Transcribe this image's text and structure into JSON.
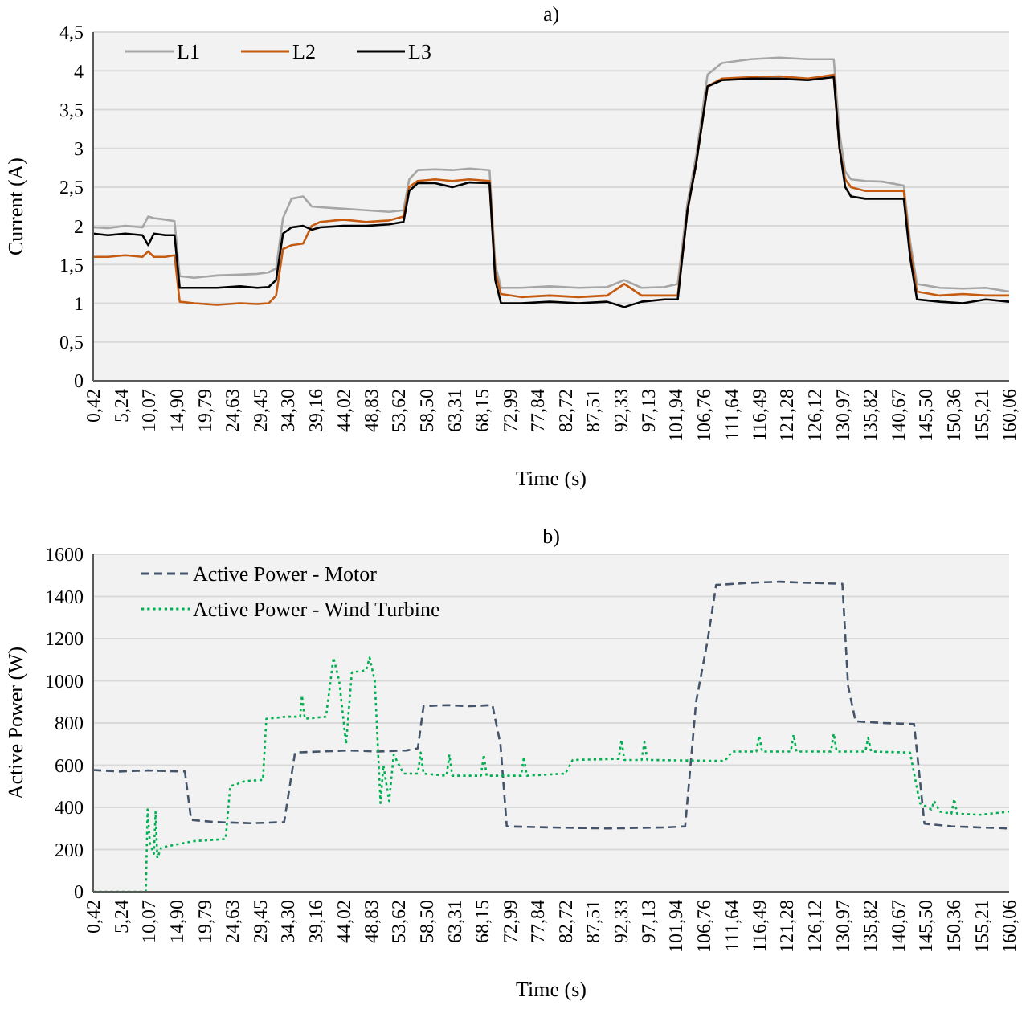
{
  "chart_data": [
    {
      "type": "line",
      "title": "a)",
      "xlabel": "Time (s)",
      "ylabel": "Current (A)",
      "xlim": [
        0.42,
        160.06
      ],
      "xticks": [
        {
          "value": 0.42,
          "label": "0,42"
        },
        {
          "value": 5.24,
          "label": "5,24"
        },
        {
          "value": 10.07,
          "label": "10,07"
        },
        {
          "value": 14.9,
          "label": "14,90"
        },
        {
          "value": 19.79,
          "label": "19,79"
        },
        {
          "value": 24.63,
          "label": "24,63"
        },
        {
          "value": 29.45,
          "label": "29,45"
        },
        {
          "value": 34.3,
          "label": "34,30"
        },
        {
          "value": 39.16,
          "label": "39,16"
        },
        {
          "value": 44.02,
          "label": "44,02"
        },
        {
          "value": 48.83,
          "label": "48,83"
        },
        {
          "value": 53.62,
          "label": "53,62"
        },
        {
          "value": 58.5,
          "label": "58,50"
        },
        {
          "value": 63.31,
          "label": "63,31"
        },
        {
          "value": 68.15,
          "label": "68,15"
        },
        {
          "value": 72.99,
          "label": "72,99"
        },
        {
          "value": 77.84,
          "label": "77,84"
        },
        {
          "value": 82.72,
          "label": "82,72"
        },
        {
          "value": 87.51,
          "label": "87,51"
        },
        {
          "value": 92.33,
          "label": "92,33"
        },
        {
          "value": 97.13,
          "label": "97,13"
        },
        {
          "value": 101.94,
          "label": "101,94"
        },
        {
          "value": 106.76,
          "label": "106,76"
        },
        {
          "value": 111.64,
          "label": "111,64"
        },
        {
          "value": 116.49,
          "label": "116,49"
        },
        {
          "value": 121.28,
          "label": "121,28"
        },
        {
          "value": 126.12,
          "label": "126,12"
        },
        {
          "value": 130.97,
          "label": "130,97"
        },
        {
          "value": 135.82,
          "label": "135,82"
        },
        {
          "value": 140.67,
          "label": "140,67"
        },
        {
          "value": 145.5,
          "label": "145,50"
        },
        {
          "value": 150.36,
          "label": "150,36"
        },
        {
          "value": 155.21,
          "label": "155,21"
        },
        {
          "value": 160.06,
          "label": "160,06"
        }
      ],
      "ylim": [
        0,
        4.5
      ],
      "yticks": [
        0,
        {
          "value": 0.5,
          "label": "0,5"
        },
        1,
        {
          "value": 1.5,
          "label": "1,5"
        },
        2,
        {
          "value": 2.5,
          "label": "2,5"
        },
        3,
        {
          "value": 3.5,
          "label": "3,5"
        },
        4,
        {
          "value": 4.5,
          "label": "4,5"
        }
      ],
      "grid": "y",
      "legend": "top left",
      "x": [
        0.42,
        3,
        6,
        9,
        10,
        11,
        13,
        14.6,
        15.5,
        18,
        22,
        26,
        29,
        31,
        32.3,
        33.5,
        35,
        37,
        38.5,
        40,
        44,
        48,
        52,
        54.5,
        55.5,
        57,
        60,
        63,
        66,
        69.5,
        70.5,
        71.5,
        75,
        80,
        85,
        90,
        93,
        96,
        100,
        102.3,
        104,
        105.5,
        107.5,
        110,
        115,
        120,
        125,
        129.5,
        130.5,
        131.5,
        132.5,
        135,
        138,
        141.7,
        142.8,
        144,
        148,
        152,
        156,
        160.06
      ],
      "series": [
        {
          "name": "L1",
          "color": "#a6a6a6",
          "line_style": "solid",
          "values": [
            1.98,
            1.97,
            2.0,
            1.98,
            2.12,
            2.1,
            2.08,
            2.06,
            1.35,
            1.33,
            1.36,
            1.37,
            1.38,
            1.4,
            1.45,
            2.1,
            2.35,
            2.38,
            2.25,
            2.24,
            2.22,
            2.2,
            2.18,
            2.2,
            2.6,
            2.72,
            2.73,
            2.72,
            2.74,
            2.72,
            1.5,
            1.2,
            1.2,
            1.22,
            1.2,
            1.21,
            1.3,
            1.2,
            1.21,
            1.25,
            2.3,
            2.9,
            3.95,
            4.1,
            4.15,
            4.17,
            4.15,
            4.15,
            3.2,
            2.7,
            2.6,
            2.58,
            2.57,
            2.52,
            1.8,
            1.25,
            1.2,
            1.19,
            1.2,
            1.15
          ]
        },
        {
          "name": "L2",
          "color": "#c55a11",
          "line_style": "solid",
          "values": [
            1.6,
            1.6,
            1.62,
            1.6,
            1.67,
            1.6,
            1.6,
            1.62,
            1.02,
            1.0,
            0.98,
            1.0,
            0.99,
            1.0,
            1.1,
            1.7,
            1.75,
            1.77,
            2.0,
            2.05,
            2.08,
            2.05,
            2.07,
            2.12,
            2.5,
            2.58,
            2.6,
            2.58,
            2.6,
            2.58,
            1.4,
            1.12,
            1.08,
            1.1,
            1.08,
            1.1,
            1.25,
            1.1,
            1.1,
            1.1,
            2.2,
            2.8,
            3.8,
            3.9,
            3.92,
            3.93,
            3.9,
            3.95,
            3.0,
            2.6,
            2.5,
            2.45,
            2.45,
            2.45,
            1.7,
            1.15,
            1.1,
            1.12,
            1.1,
            1.1
          ]
        },
        {
          "name": "L3",
          "color": "#000000",
          "line_style": "solid",
          "values": [
            1.9,
            1.88,
            1.9,
            1.88,
            1.75,
            1.9,
            1.88,
            1.88,
            1.2,
            1.2,
            1.2,
            1.22,
            1.2,
            1.21,
            1.3,
            1.9,
            1.98,
            2.0,
            1.95,
            1.98,
            2.0,
            2.0,
            2.02,
            2.05,
            2.45,
            2.55,
            2.55,
            2.5,
            2.56,
            2.55,
            1.3,
            1.0,
            1.0,
            1.02,
            1.0,
            1.02,
            0.95,
            1.02,
            1.05,
            1.05,
            2.2,
            2.8,
            3.8,
            3.88,
            3.9,
            3.9,
            3.88,
            3.92,
            3.0,
            2.5,
            2.38,
            2.35,
            2.35,
            2.35,
            1.6,
            1.05,
            1.02,
            1.0,
            1.05,
            1.02
          ]
        }
      ]
    },
    {
      "type": "line",
      "title": "b)",
      "xlabel": "Time (s)",
      "ylabel": "Active Power (W)",
      "xlim": [
        0.42,
        160.06
      ],
      "xticks": [
        {
          "value": 0.42,
          "label": "0,42"
        },
        {
          "value": 5.24,
          "label": "5,24"
        },
        {
          "value": 10.07,
          "label": "10,07"
        },
        {
          "value": 14.9,
          "label": "14,90"
        },
        {
          "value": 19.79,
          "label": "19,79"
        },
        {
          "value": 24.63,
          "label": "24,63"
        },
        {
          "value": 29.45,
          "label": "29,45"
        },
        {
          "value": 34.3,
          "label": "34,30"
        },
        {
          "value": 39.16,
          "label": "39,16"
        },
        {
          "value": 44.02,
          "label": "44,02"
        },
        {
          "value": 48.83,
          "label": "48,83"
        },
        {
          "value": 53.62,
          "label": "53,62"
        },
        {
          "value": 58.5,
          "label": "58,50"
        },
        {
          "value": 63.31,
          "label": "63,31"
        },
        {
          "value": 68.15,
          "label": "68,15"
        },
        {
          "value": 72.99,
          "label": "72,99"
        },
        {
          "value": 77.84,
          "label": "77,84"
        },
        {
          "value": 82.72,
          "label": "82,72"
        },
        {
          "value": 87.51,
          "label": "87,51"
        },
        {
          "value": 92.33,
          "label": "92,33"
        },
        {
          "value": 97.13,
          "label": "97,13"
        },
        {
          "value": 101.94,
          "label": "101,94"
        },
        {
          "value": 106.76,
          "label": "106,76"
        },
        {
          "value": 111.64,
          "label": "111,64"
        },
        {
          "value": 116.49,
          "label": "116,49"
        },
        {
          "value": 121.28,
          "label": "121,28"
        },
        {
          "value": 126.12,
          "label": "126,12"
        },
        {
          "value": 130.97,
          "label": "130,97"
        },
        {
          "value": 135.82,
          "label": "135,82"
        },
        {
          "value": 140.67,
          "label": "140,67"
        },
        {
          "value": 145.5,
          "label": "145,50"
        },
        {
          "value": 150.36,
          "label": "150,36"
        },
        {
          "value": 155.21,
          "label": "155,21"
        },
        {
          "value": 160.06,
          "label": "160,06"
        }
      ],
      "ylim": [
        0,
        1600
      ],
      "yticks": [
        0,
        200,
        400,
        600,
        800,
        1000,
        1200,
        1400,
        1600
      ],
      "grid": "y",
      "legend": "top left",
      "series": [
        {
          "name": "Active Power - Motor",
          "color": "#44546a",
          "line_style": "dashed",
          "x": [
            0.42,
            5,
            10,
            16.4,
            17.5,
            22,
            28,
            33.7,
            35.6,
            40,
            45,
            50,
            55,
            57,
            58,
            62,
            66,
            70,
            71.4,
            72.5,
            80,
            90,
            100,
            103.6,
            105.5,
            107.5,
            109,
            115,
            120,
            125,
            131,
            132,
            133.3,
            138,
            143.5,
            145.3,
            150,
            155,
            160.06
          ],
          "values": [
            577,
            570,
            575,
            570,
            340,
            330,
            325,
            330,
            660,
            665,
            670,
            665,
            670,
            680,
            880,
            885,
            880,
            885,
            700,
            310,
            305,
            300,
            305,
            310,
            900,
            1190,
            1455,
            1465,
            1470,
            1465,
            1460,
            975,
            808,
            800,
            795,
            323,
            310,
            305,
            300
          ]
        },
        {
          "name": "Active Power - Wind Turbine",
          "color": "#00b050",
          "line_style": "dotted",
          "x": [
            0.42,
            9.6,
            9.9,
            10.3,
            11,
            11.3,
            11.6,
            12.3,
            18,
            23.5,
            24.3,
            27,
            30,
            30.6,
            34,
            36.5,
            36.8,
            37.3,
            41,
            42.3,
            43.3,
            44.5,
            45.5,
            48,
            48.6,
            49.5,
            50.5,
            51,
            52,
            52.8,
            54.5,
            57,
            57.5,
            58,
            62,
            62.5,
            63,
            68,
            68.5,
            69,
            75,
            75.5,
            76,
            82.7,
            84,
            92,
            92.5,
            93,
            96,
            96.5,
            97,
            110.5,
            111.8,
            116,
            116.5,
            117,
            122,
            122.5,
            123,
            129,
            129.5,
            130,
            135,
            135.5,
            136,
            142.8,
            144.5,
            146.5,
            147,
            148,
            150,
            150.5,
            151,
            155,
            160.06
          ],
          "values": [
            0,
            0,
            390,
            230,
            180,
            380,
            160,
            210,
            240,
            250,
            500,
            525,
            530,
            820,
            830,
            830,
            930,
            820,
            830,
            1110,
            1000,
            700,
            1040,
            1050,
            1110,
            1000,
            420,
            600,
            430,
            650,
            560,
            560,
            660,
            560,
            550,
            650,
            550,
            550,
            650,
            550,
            550,
            640,
            550,
            560,
            625,
            630,
            720,
            625,
            625,
            710,
            625,
            620,
            665,
            665,
            740,
            665,
            665,
            745,
            665,
            665,
            750,
            665,
            665,
            730,
            665,
            660,
            420,
            390,
            430,
            380,
            370,
            440,
            370,
            365,
            380
          ]
        }
      ]
    }
  ]
}
